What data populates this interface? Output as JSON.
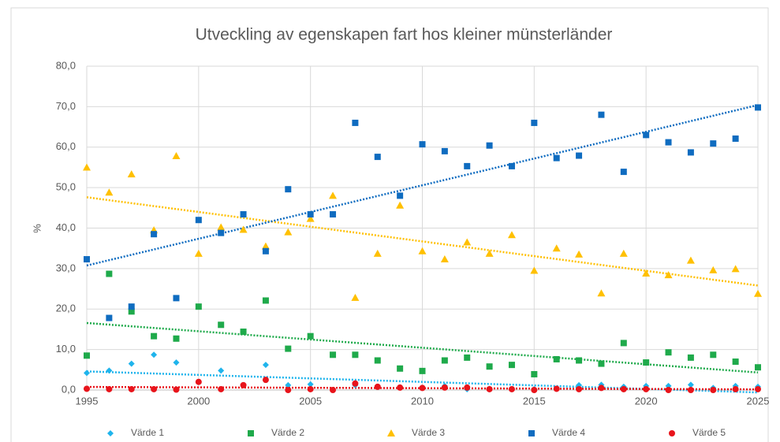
{
  "chart_data": {
    "type": "scatter",
    "title": "Utveckling av egenskapen fart hos kleiner münsterländer",
    "y_label": "%",
    "x": [
      1995,
      1996,
      1997,
      1998,
      1999,
      2000,
      2001,
      2002,
      2003,
      2004,
      2005,
      2006,
      2007,
      2008,
      2009,
      2010,
      2011,
      2012,
      2013,
      2014,
      2015,
      2016,
      2017,
      2018,
      2019,
      2020,
      2021,
      2022,
      2023,
      2024,
      2025
    ],
    "xlim": [
      1995,
      2025
    ],
    "xticks": [
      1995,
      2000,
      2005,
      2010,
      2015,
      2020,
      2025
    ],
    "ylim": [
      0,
      80
    ],
    "yticks": [
      {
        "value": 0,
        "label": "0,0"
      },
      {
        "value": 10,
        "label": "10,0"
      },
      {
        "value": 20,
        "label": "20,0"
      },
      {
        "value": 30,
        "label": "30,0"
      },
      {
        "value": 40,
        "label": "40,0"
      },
      {
        "value": 50,
        "label": "50,0"
      },
      {
        "value": 60,
        "label": "60,0"
      },
      {
        "value": 70,
        "label": "70,0"
      },
      {
        "value": 80,
        "label": "80,0"
      }
    ],
    "grid": true,
    "trendline": "linear",
    "legend": "bottom",
    "series": [
      {
        "name": "Värde 1",
        "color": "#1fb4ec",
        "marker": "diamond",
        "values": [
          4.2,
          4.8,
          6.5,
          8.7,
          6.8,
          2,
          4.8,
          1.2,
          6.2,
          1.2,
          1.4,
          0,
          1.2,
          0.8,
          0.6,
          0.5,
          1,
          0.2,
          0.3,
          0.2,
          0.2,
          0.3,
          1.2,
          1.3,
          0.8,
          1,
          1,
          1.3,
          0.5,
          1,
          0.8
        ]
      },
      {
        "name": "Värde 2",
        "color": "#1faa4b",
        "marker": "square",
        "values": [
          8.5,
          28.7,
          19.4,
          13.3,
          12.7,
          20.6,
          16.1,
          14.4,
          22.1,
          10.2,
          13.3,
          8.7,
          8.7,
          7.3,
          5.3,
          4.7,
          7.3,
          8,
          5.8,
          6.2,
          3.9,
          7.6,
          7.3,
          6.5,
          11.6,
          6.8,
          9.3,
          8,
          8.7,
          7,
          5.6
        ]
      },
      {
        "name": "Värde 3",
        "color": "#ffc000",
        "marker": "triangle",
        "values": [
          55,
          48.8,
          53.3,
          39.5,
          57.8,
          33.7,
          40.2,
          39.6,
          35.5,
          39,
          42.3,
          48,
          22.8,
          33.7,
          45.6,
          34.3,
          32.3,
          36.5,
          33.7,
          38.3,
          29.5,
          35,
          33.5,
          23.9,
          33.7,
          28.8,
          28.4,
          32,
          29.6,
          29.9,
          23.8
        ]
      },
      {
        "name": "Värde 4",
        "color": "#0f6cc0",
        "marker": "square",
        "values": [
          32.3,
          17.8,
          20.6,
          38.5,
          22.7,
          42,
          38.8,
          43.4,
          34.3,
          49.6,
          43.4,
          43.4,
          66,
          57.6,
          48,
          60.7,
          59,
          55.3,
          60.4,
          55.3,
          66,
          57.3,
          57.9,
          68,
          53.9,
          63,
          61.2,
          58.7,
          60.9,
          62.1,
          69.8
        ]
      },
      {
        "name": "Värde 5",
        "color": "#e8141b",
        "marker": "circle",
        "values": [
          0.3,
          0.2,
          0.2,
          0.2,
          0.1,
          2,
          0.2,
          1.2,
          2.5,
          0,
          0.2,
          0,
          1.6,
          0.8,
          0.6,
          0.5,
          0.6,
          0.6,
          0.2,
          0.2,
          0,
          0.3,
          0.2,
          0.5,
          0.2,
          0.2,
          0,
          0,
          0,
          0.2,
          0.2
        ]
      }
    ]
  }
}
